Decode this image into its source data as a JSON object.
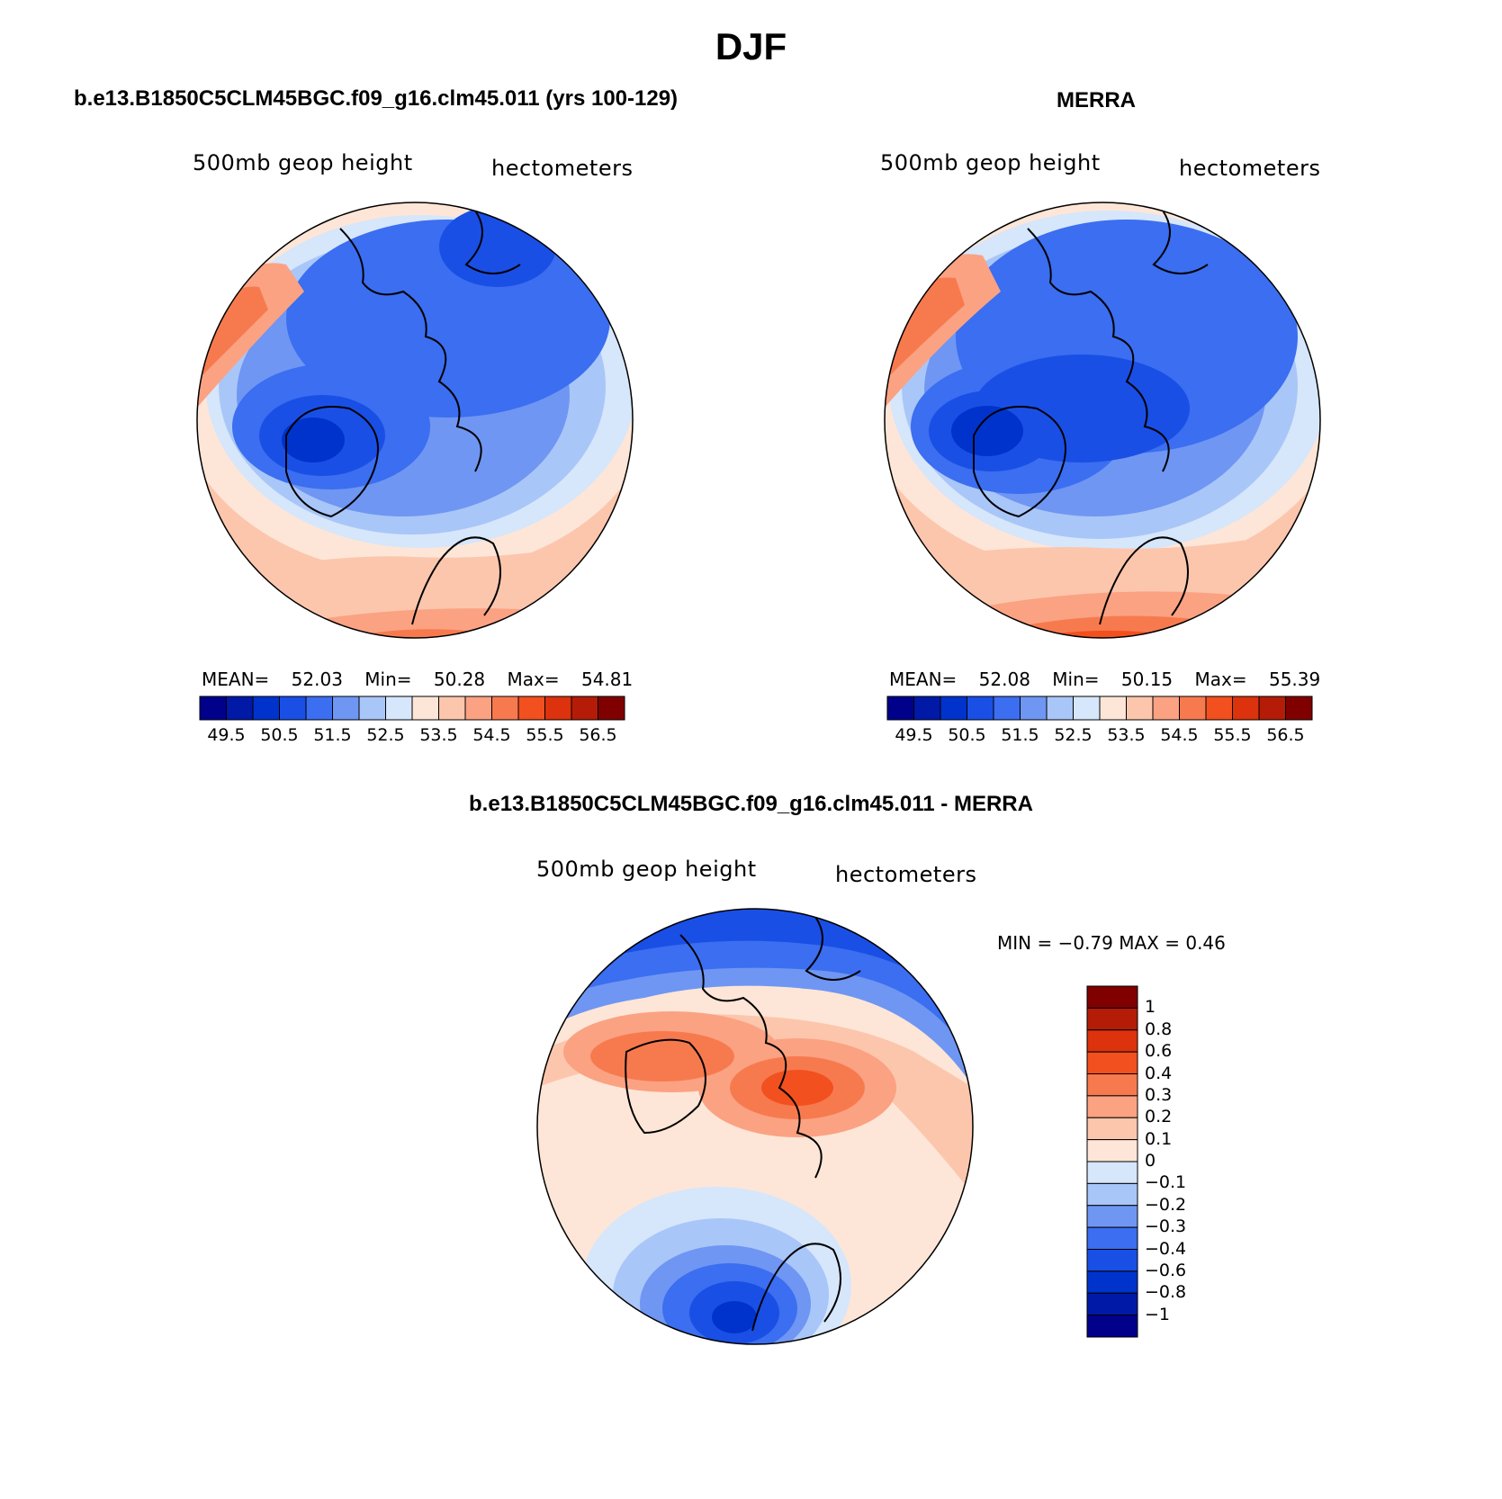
{
  "figure": {
    "title": "DJF"
  },
  "colors": {
    "abs_scale": [
      "#00008b",
      "#0019a6",
      "#0033cc",
      "#1a4fe6",
      "#3b6ef0",
      "#6f96f2",
      "#a9c6f8",
      "#d6e6fb",
      "#fde6d7",
      "#fcc6ad",
      "#fba283",
      "#f77a4f",
      "#f2501e",
      "#dc320d",
      "#b41c08",
      "#800000"
    ],
    "diff_scale": [
      "#00008b",
      "#0019a6",
      "#0033cc",
      "#1a4fe6",
      "#3b6ef0",
      "#6f96f2",
      "#a9c6f8",
      "#d6e6fb",
      "#fde6d7",
      "#fcc6ad",
      "#fba283",
      "#f77a4f",
      "#f2501e",
      "#dc320d",
      "#b41c08",
      "#800000"
    ]
  },
  "panels": [
    {
      "title": "b.e13.B1850C5CLM45BGC.f09_g16.clm45.011 (yrs 100-129)",
      "variable": "500mb geop height",
      "units": "hectometers",
      "stats": {
        "mean_label": "MEAN=",
        "mean": "52.03",
        "min_label": "Min=",
        "min": "50.28",
        "max_label": "Max=",
        "max": "54.81"
      },
      "colorbar_ticks": [
        "49.5",
        "50.5",
        "51.5",
        "52.5",
        "53.5",
        "54.5",
        "55.5",
        "56.5"
      ]
    },
    {
      "title": "MERRA",
      "variable": "500mb geop height",
      "units": "hectometers",
      "stats": {
        "mean_label": "MEAN=",
        "mean": "52.08",
        "min_label": "Min=",
        "min": "50.15",
        "max_label": "Max=",
        "max": "55.39"
      },
      "colorbar_ticks": [
        "49.5",
        "50.5",
        "51.5",
        "52.5",
        "53.5",
        "54.5",
        "55.5",
        "56.5"
      ]
    }
  ],
  "diff_panel": {
    "title": "b.e13.B1850C5CLM45BGC.f09_g16.clm45.011 - MERRA",
    "variable": "500mb geop height",
    "units": "hectometers",
    "minmax": "MIN =   −0.79 MAX =    0.46",
    "colorbar_ticks": [
      "1",
      "0.8",
      "0.6",
      "0.4",
      "0.3",
      "0.2",
      "0.1",
      "0",
      "−0.1",
      "−0.2",
      "−0.3",
      "−0.4",
      "−0.6",
      "−0.8",
      "−1"
    ]
  }
}
